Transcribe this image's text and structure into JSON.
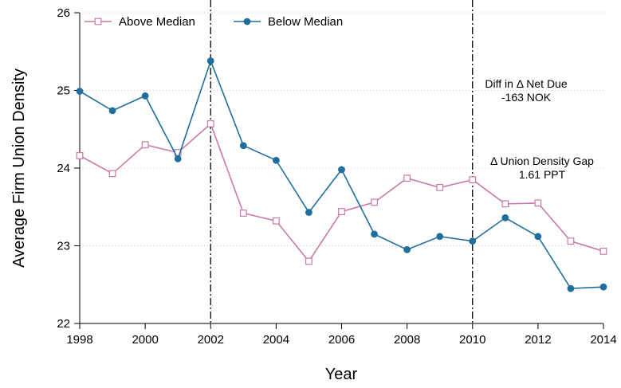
{
  "chart_data": {
    "type": "line",
    "title": "",
    "xlabel": "Year",
    "ylabel": "Average Firm Union Density",
    "x": [
      1998,
      1999,
      2000,
      2001,
      2002,
      2003,
      2004,
      2005,
      2006,
      2007,
      2008,
      2009,
      2010,
      2011,
      2012,
      2013,
      2014
    ],
    "xticks": [
      "1998",
      "2000",
      "2002",
      "2004",
      "2006",
      "2008",
      "2010",
      "2012",
      "2014"
    ],
    "yticks": [
      "22",
      "23",
      "24",
      "25",
      "26"
    ],
    "xlim": [
      1998,
      2014
    ],
    "ylim": [
      22,
      26
    ],
    "grid": "horizontal dotted",
    "legend_position": "top-left",
    "series": [
      {
        "name": "Above Median",
        "color": "#c77aa8",
        "marker": "hollow-square",
        "values": [
          24.16,
          23.93,
          24.3,
          24.2,
          24.57,
          23.42,
          23.32,
          22.8,
          23.44,
          23.56,
          23.87,
          23.75,
          23.85,
          23.54,
          23.55,
          23.06,
          22.93
        ]
      },
      {
        "name": "Below Median",
        "color": "#1f6e9c",
        "marker": "filled-circle",
        "values": [
          24.99,
          24.74,
          24.93,
          24.12,
          25.38,
          24.29,
          24.1,
          23.43,
          23.98,
          23.15,
          22.95,
          23.12,
          23.06,
          23.36,
          23.12,
          22.45,
          22.47
        ]
      }
    ],
    "vertical_lines": [
      2002,
      2010
    ],
    "annotations": [
      {
        "line1": "Diff in Δ Net Due",
        "line2": "-163 NOK"
      },
      {
        "line1": "Δ Union Density Gap",
        "line2": "1.61 PPT"
      }
    ]
  }
}
